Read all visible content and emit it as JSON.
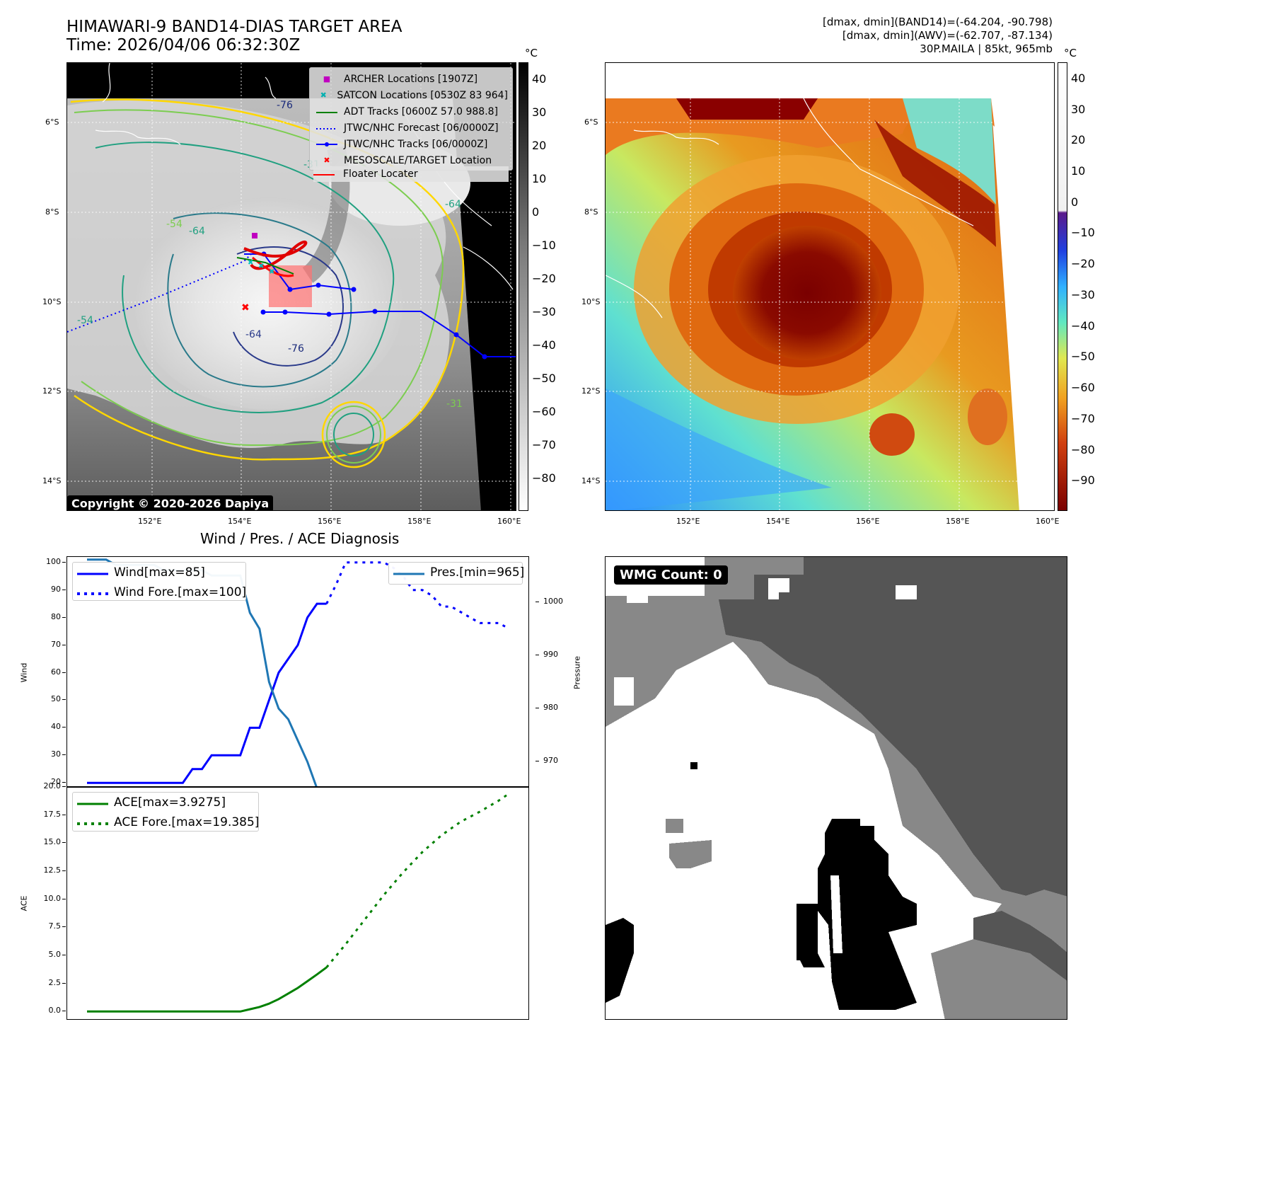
{
  "header": {
    "title_line1": "HIMAWARI-9 BAND14-DIAS TARGET AREA",
    "title_line2": "Time: 2026/04/06 06:32:30Z",
    "info_line1": "[dmax, dmin](BAND14)=(-64.204, -90.798)",
    "info_line2": "[dmax, dmin](AWV)=(-62.707, -87.134)",
    "info_line3": "30P.MAILA | 85kt, 965mb"
  },
  "map_axes": {
    "lat_labels": [
      "6°S",
      "8°S",
      "10°S",
      "12°S",
      "14°S"
    ],
    "lon_labels": [
      "152°E",
      "154°E",
      "156°E",
      "158°E",
      "160°E"
    ]
  },
  "ir_panel": {
    "copyright": "Copyright © 2020-2026 Dapiya",
    "colorbar_unit": "°C",
    "colorbar_ticks": [
      "40",
      "30",
      "20",
      "10",
      "0",
      "−10",
      "−20",
      "−30",
      "−40",
      "−50",
      "−60",
      "−70",
      "−80"
    ],
    "contour_labels": [
      "-76",
      "-31",
      "-64",
      "-54",
      "-64",
      "-76",
      "-54",
      "-31",
      "-64"
    ],
    "legend": [
      {
        "label": "ARCHER Locations [1907Z]",
        "symbol": "■",
        "color": "#c000c0"
      },
      {
        "label": "SATCON Locations [0530Z 83 964]",
        "symbol": "✖",
        "color": "#00b0b0"
      },
      {
        "label": "ADT Tracks [0600Z 57.0 988.8]",
        "symbol": "line",
        "color": "#008000"
      },
      {
        "label": "JTWC/NHC Forecast [06/0000Z]",
        "symbol": "dotted",
        "color": "#0000ff"
      },
      {
        "label": "JTWC/NHC Tracks [06/0000Z]",
        "symbol": "line-dot",
        "color": "#0000ff"
      },
      {
        "label": "MESOSCALE/TARGET Location",
        "symbol": "✖",
        "color": "#ff0000"
      },
      {
        "label": "Floater Locater",
        "symbol": "line",
        "color": "#ff0000"
      }
    ]
  },
  "awv_panel": {
    "colorbar_unit": "°C",
    "colorbar_ticks": [
      "40",
      "30",
      "20",
      "10",
      "0",
      "−10",
      "−20",
      "−30",
      "−40",
      "−50",
      "−60",
      "−70",
      "−80",
      "−90"
    ]
  },
  "diag_panel": {
    "title": "Wind / Pres. / ACE Diagnosis",
    "wind_ylabel": "Wind",
    "pres_ylabel": "Pressure",
    "ace_ylabel": "ACE",
    "legend_wind": "Wind[max=85]",
    "legend_wind_fore": "Wind Fore.[max=100]",
    "legend_pres": "Pres.[min=965]",
    "legend_ace": "ACE[max=3.9275]",
    "legend_ace_fore": "ACE Fore.[max=19.385]"
  },
  "wmg_panel": {
    "label": "WMG Count: 0"
  },
  "chart_data": [
    {
      "type": "line",
      "name": "wind",
      "ylim": [
        18,
        102
      ],
      "yticks": [
        20,
        30,
        40,
        50,
        60,
        70,
        80,
        90,
        100
      ],
      "xlim": [
        0,
        44
      ],
      "series": [
        {
          "name": "Wind[max=85]",
          "color": "#0000ff",
          "style": "solid",
          "x": [
            0,
            1,
            2,
            3,
            4,
            5,
            6,
            7,
            8,
            9,
            10,
            11,
            12,
            13,
            14,
            15,
            16,
            17,
            18,
            19,
            20,
            21,
            22,
            23,
            24,
            25
          ],
          "values": [
            20,
            20,
            20,
            20,
            20,
            20,
            20,
            20,
            20,
            20,
            20,
            25,
            25,
            30,
            30,
            30,
            30,
            40,
            40,
            50,
            60,
            65,
            70,
            80,
            85,
            85
          ]
        },
        {
          "name": "Wind Fore.[max=100]",
          "color": "#0000ff",
          "style": "dotted",
          "x": [
            25,
            26,
            27,
            28,
            29,
            30,
            31,
            32,
            33,
            34,
            35,
            36,
            37,
            38,
            39,
            40,
            41,
            42,
            43,
            44
          ],
          "values": [
            85,
            92,
            100,
            100,
            100,
            100,
            100,
            98,
            95,
            90,
            90,
            88,
            84,
            84,
            82,
            80,
            78,
            78,
            78,
            76
          ]
        }
      ]
    },
    {
      "type": "line",
      "name": "pressure",
      "ylim": [
        965,
        1008.5
      ],
      "yticks": [
        970,
        980,
        990,
        1000
      ],
      "xlim": [
        0,
        44
      ],
      "series": [
        {
          "name": "Pres.[min=965]",
          "color": "#1f77b4",
          "style": "solid",
          "x": [
            0,
            1,
            2,
            3,
            4,
            5,
            6,
            7,
            8,
            9,
            10,
            11,
            12,
            13,
            14,
            15,
            16,
            17,
            18,
            19,
            20,
            21,
            22,
            23,
            24,
            25
          ],
          "values": [
            1008,
            1008,
            1008,
            1007,
            1007,
            1007,
            1007,
            1007,
            1006,
            1006,
            1006,
            1006,
            1006,
            1005,
            1005,
            1005,
            1005,
            998,
            995,
            985,
            980,
            978,
            974,
            970,
            965,
            965
          ]
        }
      ]
    },
    {
      "type": "line",
      "name": "ace",
      "ylim": [
        -0.8,
        20
      ],
      "yticks": [
        0.0,
        2.5,
        5.0,
        7.5,
        10.0,
        12.5,
        15.0,
        17.5,
        20.0
      ],
      "xlim": [
        0,
        44
      ],
      "series": [
        {
          "name": "ACE[max=3.9275]",
          "color": "#008000",
          "style": "solid",
          "x": [
            0,
            4,
            8,
            12,
            16,
            17,
            18,
            19,
            20,
            21,
            22,
            23,
            24,
            25
          ],
          "values": [
            0,
            0,
            0,
            0,
            0,
            0.2,
            0.4,
            0.7,
            1.1,
            1.6,
            2.1,
            2.7,
            3.3,
            3.93
          ]
        },
        {
          "name": "ACE Fore.[max=19.385]",
          "color": "#008000",
          "style": "dotted",
          "x": [
            25,
            27,
            29,
            31,
            33,
            35,
            37,
            39,
            41,
            43,
            44
          ],
          "values": [
            3.93,
            6.0,
            8.2,
            10.4,
            12.4,
            14.2,
            15.7,
            16.9,
            17.8,
            18.8,
            19.385
          ]
        }
      ]
    }
  ]
}
